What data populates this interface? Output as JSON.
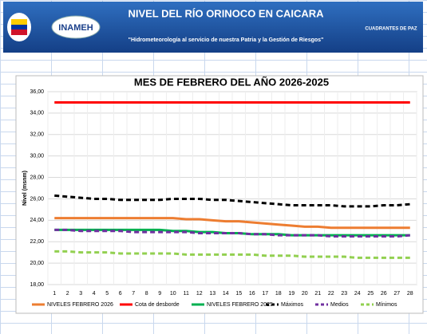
{
  "header": {
    "title": "NIVEL DEL RÍO ORINOCO EN CAICARA",
    "subtitle": "\"Hidrometeorología al servicio de nuestra Patria y la Gestión de Riesgos\"",
    "logo_left": "INAMEH",
    "logo_right": "CUADRANTES DE PAZ"
  },
  "chart_data": {
    "type": "line",
    "title": "MES DE FEBRERO DEL AÑO 2026-2025",
    "y_label": "Nivel (msnm)",
    "categories": [
      "1",
      "2",
      "3",
      "4",
      "5",
      "6",
      "7",
      "8",
      "9",
      "10",
      "11",
      "12",
      "13",
      "14",
      "15",
      "16",
      "17",
      "18",
      "19",
      "20",
      "21",
      "22",
      "23",
      "24",
      "25",
      "26",
      "27",
      "28"
    ],
    "ylim": [
      18,
      36
    ],
    "yticks": [
      {
        "value": 18,
        "label": "18,00"
      },
      {
        "value": 20,
        "label": "20,00"
      },
      {
        "value": 22,
        "label": "22,00"
      },
      {
        "value": 24,
        "label": "24,00"
      },
      {
        "value": 26,
        "label": "26,00"
      },
      {
        "value": 28,
        "label": "28,00"
      },
      {
        "value": 30,
        "label": "30,00"
      },
      {
        "value": 32,
        "label": "32,00"
      },
      {
        "value": 34,
        "label": "34,00"
      },
      {
        "value": 36,
        "label": "36,00"
      }
    ],
    "legend": "bottom",
    "series": [
      {
        "name": "NIVELES FEBRERO 2026",
        "color": "#ed7d31",
        "dash": false,
        "values": [
          24.2,
          24.2,
          24.2,
          24.2,
          24.2,
          24.2,
          24.2,
          24.2,
          24.2,
          24.2,
          24.1,
          24.1,
          24.0,
          23.9,
          23.9,
          23.8,
          23.7,
          23.6,
          23.5,
          23.4,
          23.4,
          23.3,
          23.3,
          23.3,
          23.3,
          23.3,
          23.3,
          23.3
        ]
      },
      {
        "name": "Cota de desborde",
        "color": "#ff0000",
        "dash": false,
        "values": [
          35,
          35,
          35,
          35,
          35,
          35,
          35,
          35,
          35,
          35,
          35,
          35,
          35,
          35,
          35,
          35,
          35,
          35,
          35,
          35,
          35,
          35,
          35,
          35,
          35,
          35,
          35,
          35
        ]
      },
      {
        "name": "NIVELES FEBRERO 2025",
        "color": "#00b050",
        "dash": false,
        "values": [
          23.1,
          23.1,
          23.1,
          23.1,
          23.1,
          23.1,
          23.1,
          23.1,
          23.1,
          23.0,
          23.0,
          22.9,
          22.9,
          22.8,
          22.8,
          22.7,
          22.7,
          22.7,
          22.6,
          22.6,
          22.6,
          22.6,
          22.6,
          22.6,
          22.6,
          22.6,
          22.6,
          22.6
        ]
      },
      {
        "name": "Máximos",
        "color": "#000000",
        "dash": true,
        "values": [
          26.3,
          26.2,
          26.1,
          26.0,
          26.0,
          25.9,
          25.9,
          25.9,
          25.9,
          26.0,
          26.0,
          26.0,
          25.9,
          25.9,
          25.8,
          25.7,
          25.6,
          25.5,
          25.4,
          25.4,
          25.4,
          25.4,
          25.3,
          25.3,
          25.3,
          25.4,
          25.4,
          25.5
        ]
      },
      {
        "name": "Medios",
        "color": "#7030a0",
        "dash": true,
        "values": [
          23.1,
          23.1,
          23.0,
          23.0,
          23.0,
          23.0,
          22.9,
          22.9,
          22.9,
          22.9,
          22.9,
          22.8,
          22.8,
          22.8,
          22.8,
          22.7,
          22.7,
          22.6,
          22.6,
          22.6,
          22.6,
          22.5,
          22.5,
          22.5,
          22.5,
          22.5,
          22.5,
          22.6
        ]
      },
      {
        "name": "Mínimos",
        "color": "#92d050",
        "dash": true,
        "values": [
          21.1,
          21.1,
          21.0,
          21.0,
          21.0,
          20.9,
          20.9,
          20.9,
          20.9,
          20.9,
          20.8,
          20.8,
          20.8,
          20.8,
          20.8,
          20.8,
          20.7,
          20.7,
          20.7,
          20.6,
          20.6,
          20.6,
          20.6,
          20.5,
          20.5,
          20.5,
          20.5,
          20.5
        ]
      }
    ]
  }
}
